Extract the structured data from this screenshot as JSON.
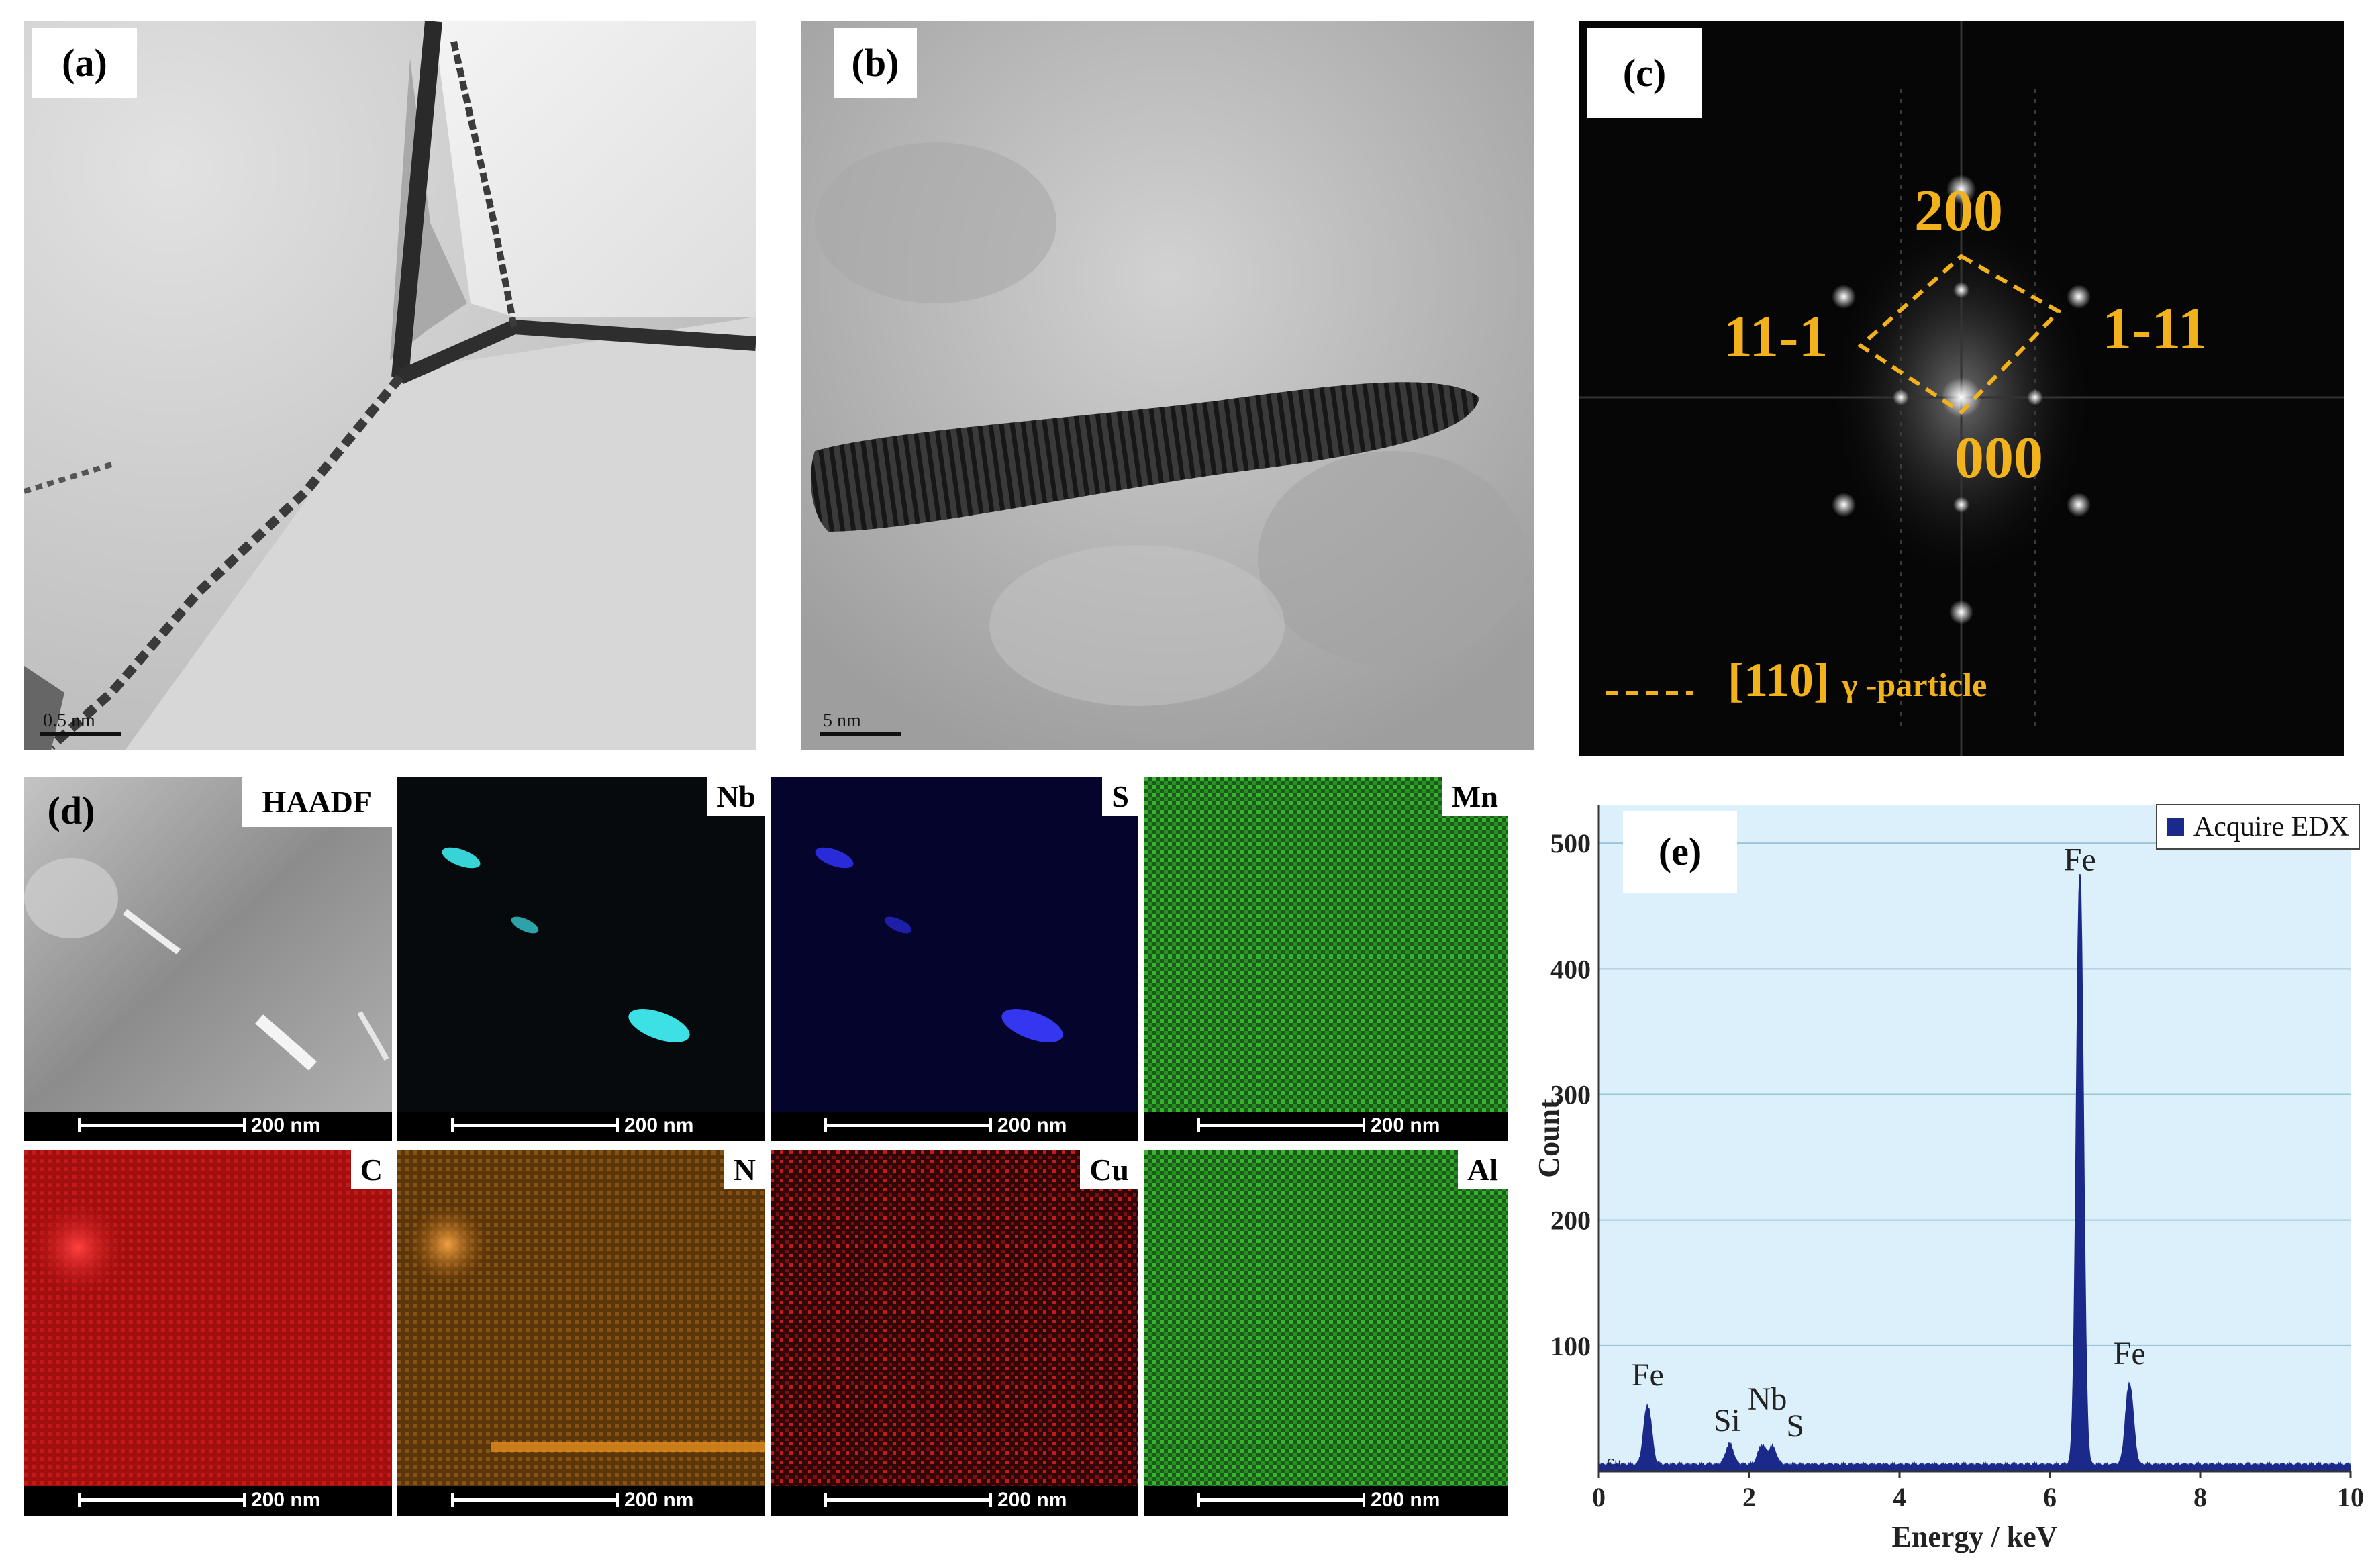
{
  "panels": {
    "a": {
      "label": "(a)",
      "scale": "0.5 nm"
    },
    "b": {
      "label": "(b)",
      "scale": "5 nm"
    },
    "c": {
      "label": "(c)",
      "spots": {
        "top": "200",
        "left": "11-1",
        "right": "1-11",
        "origin": "000"
      },
      "legend_zone": "[110]",
      "legend_suffix": "γ -particle"
    },
    "d": {
      "label": "(d)",
      "maps": [
        {
          "name": "HAADF",
          "scale": "200 nm",
          "color": "#c8c8c8"
        },
        {
          "name": "Nb",
          "scale": "200 nm",
          "color": "#39d0d4"
        },
        {
          "name": "S",
          "scale": "200 nm",
          "color": "#2a2bd8"
        },
        {
          "name": "Mn",
          "scale": "200 nm",
          "color": "#33b52e"
        },
        {
          "name": "C",
          "scale": "200 nm",
          "color": "#d81616"
        },
        {
          "name": "N",
          "scale": "200 nm",
          "color": "#e08a18"
        },
        {
          "name": "Cu",
          "scale": "200 nm",
          "color": "#c41a1a"
        },
        {
          "name": "Al",
          "scale": "200 nm",
          "color": "#2fb02a"
        }
      ]
    },
    "e": {
      "label": "(e)"
    }
  },
  "chart_data": {
    "type": "area",
    "legend": "Acquire EDX",
    "legend_position": "top-right",
    "xlabel": "Energy / keV",
    "ylabel": "Count",
    "xlim": [
      0,
      10
    ],
    "ylim": [
      0,
      530
    ],
    "xticks": [
      0,
      2,
      4,
      6,
      8,
      10
    ],
    "yticks": [
      100,
      200,
      300,
      400,
      500
    ],
    "grid": true,
    "series_color": "#1b2a8a",
    "background": "#dcf0fb",
    "peaks": [
      {
        "energy": 0.65,
        "count": 47,
        "label": "Fe"
      },
      {
        "energy": 1.74,
        "count": 16,
        "label": "Si"
      },
      {
        "energy": 2.17,
        "count": 15,
        "label": "Nb"
      },
      {
        "energy": 2.31,
        "count": 14,
        "label": "S"
      },
      {
        "energy": 6.4,
        "count": 470,
        "label": "Fe"
      },
      {
        "energy": 7.06,
        "count": 64,
        "label": "Fe"
      }
    ],
    "small_label": "Cu"
  }
}
